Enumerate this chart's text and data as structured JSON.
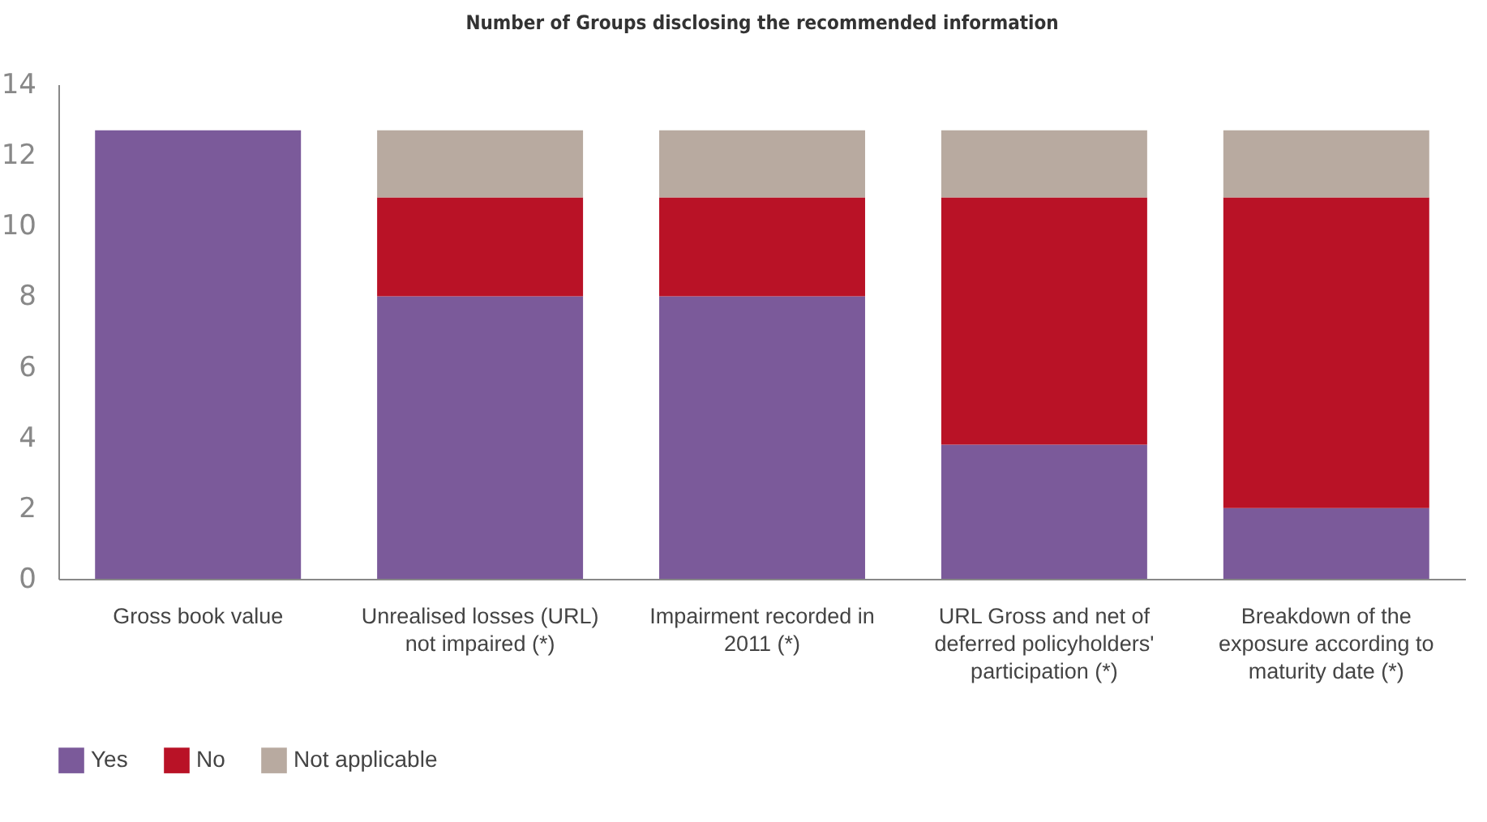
{
  "chart_data": {
    "type": "bar",
    "title": "Number of Groups disclosing the recommended  information",
    "categories": [
      "Gross book value",
      "Unrealised losses (URL) not impaired (*)",
      "Impairment recorded in 2011 (*)",
      "URL Gross and net of deferred policyholders' participation (*)",
      "Breakdown of the exposure according to maturity date (*)"
    ],
    "series": [
      {
        "name": "Yes",
        "color": "#7b5a9a",
        "values": [
          12.7,
          8,
          8,
          3.8,
          2
        ]
      },
      {
        "name": "No",
        "color": "#b91226",
        "values": [
          null,
          2.8,
          2.8,
          7,
          8.8
        ]
      },
      {
        "name": "Not applicable",
        "color": "#b8aaa0",
        "values": [
          null,
          1.9,
          1.9,
          1.9,
          1.9
        ]
      }
    ],
    "stacked": true,
    "ylim": [
      0,
      14
    ],
    "yticks": [
      0,
      2,
      4,
      6,
      8,
      10,
      12,
      14
    ],
    "grid": false,
    "legend": "bottom left"
  }
}
